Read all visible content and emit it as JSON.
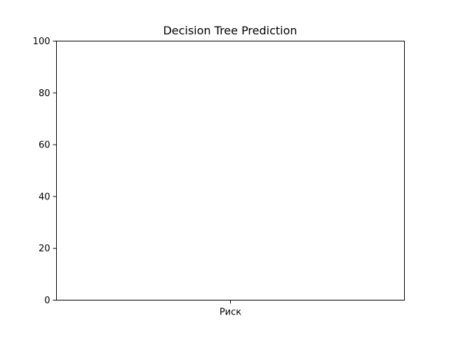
{
  "chart_data": {
    "type": "bar",
    "title": "Decision Tree Prediction",
    "xlabel": "",
    "ylabel": "",
    "categories": [
      "Риск"
    ],
    "values": [
      0
    ],
    "ylim": [
      0,
      100
    ],
    "yticks": [
      "0",
      "20",
      "40",
      "60",
      "80",
      "100"
    ],
    "grid": false,
    "colors": {
      "axis": "#000000",
      "background": "#ffffff"
    }
  }
}
